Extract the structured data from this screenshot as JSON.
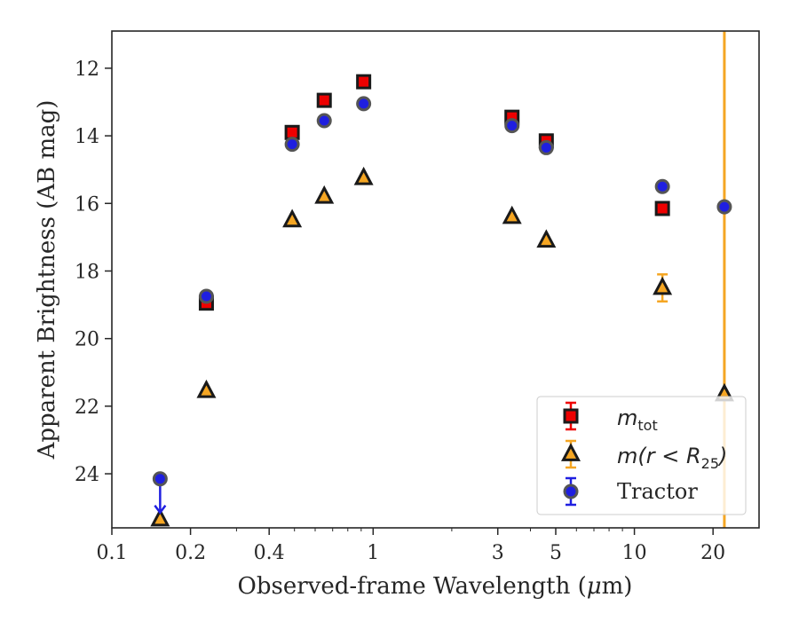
{
  "chart_data": {
    "type": "scatter",
    "xlabel_text": "Observed-frame Wavelength (",
    "xlabel_mu": "μ",
    "xlabel_suffix": "m)",
    "ylabel": "Apparent Brightness (AB mag)",
    "x_scale": "log",
    "xlim": [
      0.1,
      30
    ],
    "ylim": [
      25.6,
      10.9
    ],
    "y_inverted": true,
    "x_ticks": [
      0.1,
      0.2,
      0.4,
      1,
      3,
      5,
      10,
      20
    ],
    "x_tick_labels": [
      "0.1",
      "0.2",
      "0.4",
      "1",
      "3",
      "5",
      "10",
      "20"
    ],
    "y_ticks": [
      12,
      14,
      16,
      18,
      20,
      22,
      24
    ],
    "y_tick_labels": [
      "12",
      "14",
      "16",
      "18",
      "20",
      "22",
      "24"
    ],
    "grid": false,
    "legend_position": "lower-right",
    "vertical_line": {
      "x": 22.1,
      "color": "#f5a623"
    },
    "series": [
      {
        "key": "mtot",
        "marker": "square",
        "face_color": "#ee0000",
        "edge_color": "#1a1a1a",
        "err_color": "#ee0000",
        "points": [
          {
            "x": 0.23,
            "y": 18.95,
            "err": 0.05
          },
          {
            "x": 0.49,
            "y": 13.9,
            "err": 0.05
          },
          {
            "x": 0.65,
            "y": 12.95,
            "err": 0.05
          },
          {
            "x": 0.92,
            "y": 12.4,
            "err": 0.05
          },
          {
            "x": 3.4,
            "y": 13.45,
            "err": 0.05
          },
          {
            "x": 4.6,
            "y": 14.15,
            "err": 0.05
          },
          {
            "x": 12.8,
            "y": 16.15,
            "err": 0.05
          }
        ]
      },
      {
        "key": "mr25",
        "marker": "triangle",
        "face_color": "#f5a623",
        "edge_color": "#1a1a1a",
        "err_color": "#f5a623",
        "points": [
          {
            "x": 0.153,
            "y": 25.35,
            "err": 0.05
          },
          {
            "x": 0.23,
            "y": 21.55,
            "err": 0.05
          },
          {
            "x": 0.49,
            "y": 16.5,
            "err": 0.05
          },
          {
            "x": 0.65,
            "y": 15.8,
            "err": 0.05
          },
          {
            "x": 0.92,
            "y": 15.25,
            "err": 0.05
          },
          {
            "x": 3.4,
            "y": 16.4,
            "err": 0.05
          },
          {
            "x": 4.6,
            "y": 17.1,
            "err": 0.05
          },
          {
            "x": 12.8,
            "y": 18.5,
            "err": 0.4
          },
          {
            "x": 22.1,
            "y": 21.65,
            "err": 0.05
          }
        ]
      },
      {
        "key": "tractor",
        "name": "Tractor",
        "marker": "circle",
        "face_color": "#1f1fe0",
        "edge_color": "#555555",
        "err_color": "#1f1fe0",
        "points": [
          {
            "x": 0.153,
            "y": 24.15,
            "err": 0.05,
            "upper_limit": true
          },
          {
            "x": 0.23,
            "y": 18.75,
            "err": 0.05
          },
          {
            "x": 0.49,
            "y": 14.25,
            "err": 0.05
          },
          {
            "x": 0.65,
            "y": 13.55,
            "err": 0.05
          },
          {
            "x": 0.92,
            "y": 13.05,
            "err": 0.05
          },
          {
            "x": 3.4,
            "y": 13.7,
            "err": 0.05
          },
          {
            "x": 4.6,
            "y": 14.35,
            "err": 0.05
          },
          {
            "x": 12.8,
            "y": 15.5,
            "err": 0.05
          },
          {
            "x": 22.1,
            "y": 16.1,
            "err": 0.05
          }
        ]
      }
    ],
    "legend": {
      "mtot_base": "m",
      "mtot_sub": "tot",
      "mr25_prefix": "m(r < R",
      "mr25_sub": "25",
      "mr25_suffix": ")",
      "tractor": "Tractor"
    }
  }
}
